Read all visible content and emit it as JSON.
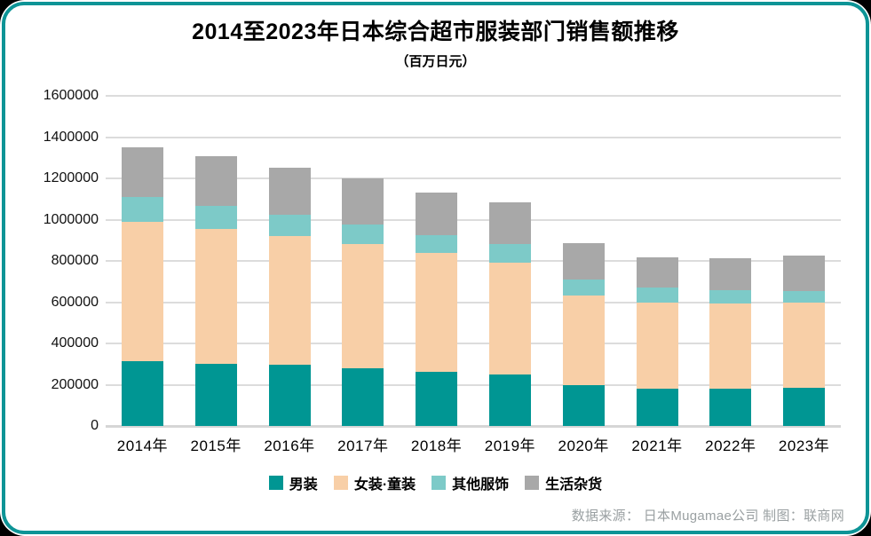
{
  "page": {
    "footer_credit": "数据来源： 日本Mugamae公司 制图：联商网"
  },
  "colors": {
    "frame_border": "#0d9496",
    "grid": "#dcdcdc",
    "axis_zero_line": "#d6d6d6",
    "footer_text": "#9aa0a2",
    "series_men": "#009693",
    "series_women_kids": "#f8cfa7",
    "series_other": "#7dcac8",
    "series_sundries": "#a8a8a8"
  },
  "chart_data": {
    "type": "bar",
    "stacked": true,
    "title": "2014至2023年日本综合超市服装部门销售额推移",
    "subtitle": "（百万日元）",
    "unit": "百万日元",
    "categories": [
      "2014年",
      "2015年",
      "2016年",
      "2017年",
      "2018年",
      "2019年",
      "2020年",
      "2021年",
      "2022年",
      "2023年"
    ],
    "series": [
      {
        "name": "男装",
        "color": "#009693",
        "values": [
          315000,
          302000,
          295000,
          280000,
          264000,
          250000,
          200000,
          181000,
          180000,
          186000
        ]
      },
      {
        "name": "女装·童装",
        "color": "#f8cfa7",
        "values": [
          675000,
          653000,
          627000,
          600000,
          575000,
          541000,
          431000,
          415000,
          413000,
          411000
        ]
      },
      {
        "name": "其他服饰",
        "color": "#7dcac8",
        "values": [
          118000,
          110000,
          103000,
          95000,
          86000,
          90000,
          79000,
          74000,
          67000,
          59000
        ]
      },
      {
        "name": "生活杂货",
        "color": "#a8a8a8",
        "values": [
          244000,
          243000,
          228000,
          225000,
          208000,
          201000,
          176000,
          148000,
          155000,
          171000
        ]
      }
    ],
    "ylim": [
      0,
      1600000
    ],
    "yticks": [
      0,
      200000,
      400000,
      600000,
      800000,
      1000000,
      1200000,
      1400000,
      1600000
    ],
    "grid": true,
    "legend_position": "bottom"
  }
}
